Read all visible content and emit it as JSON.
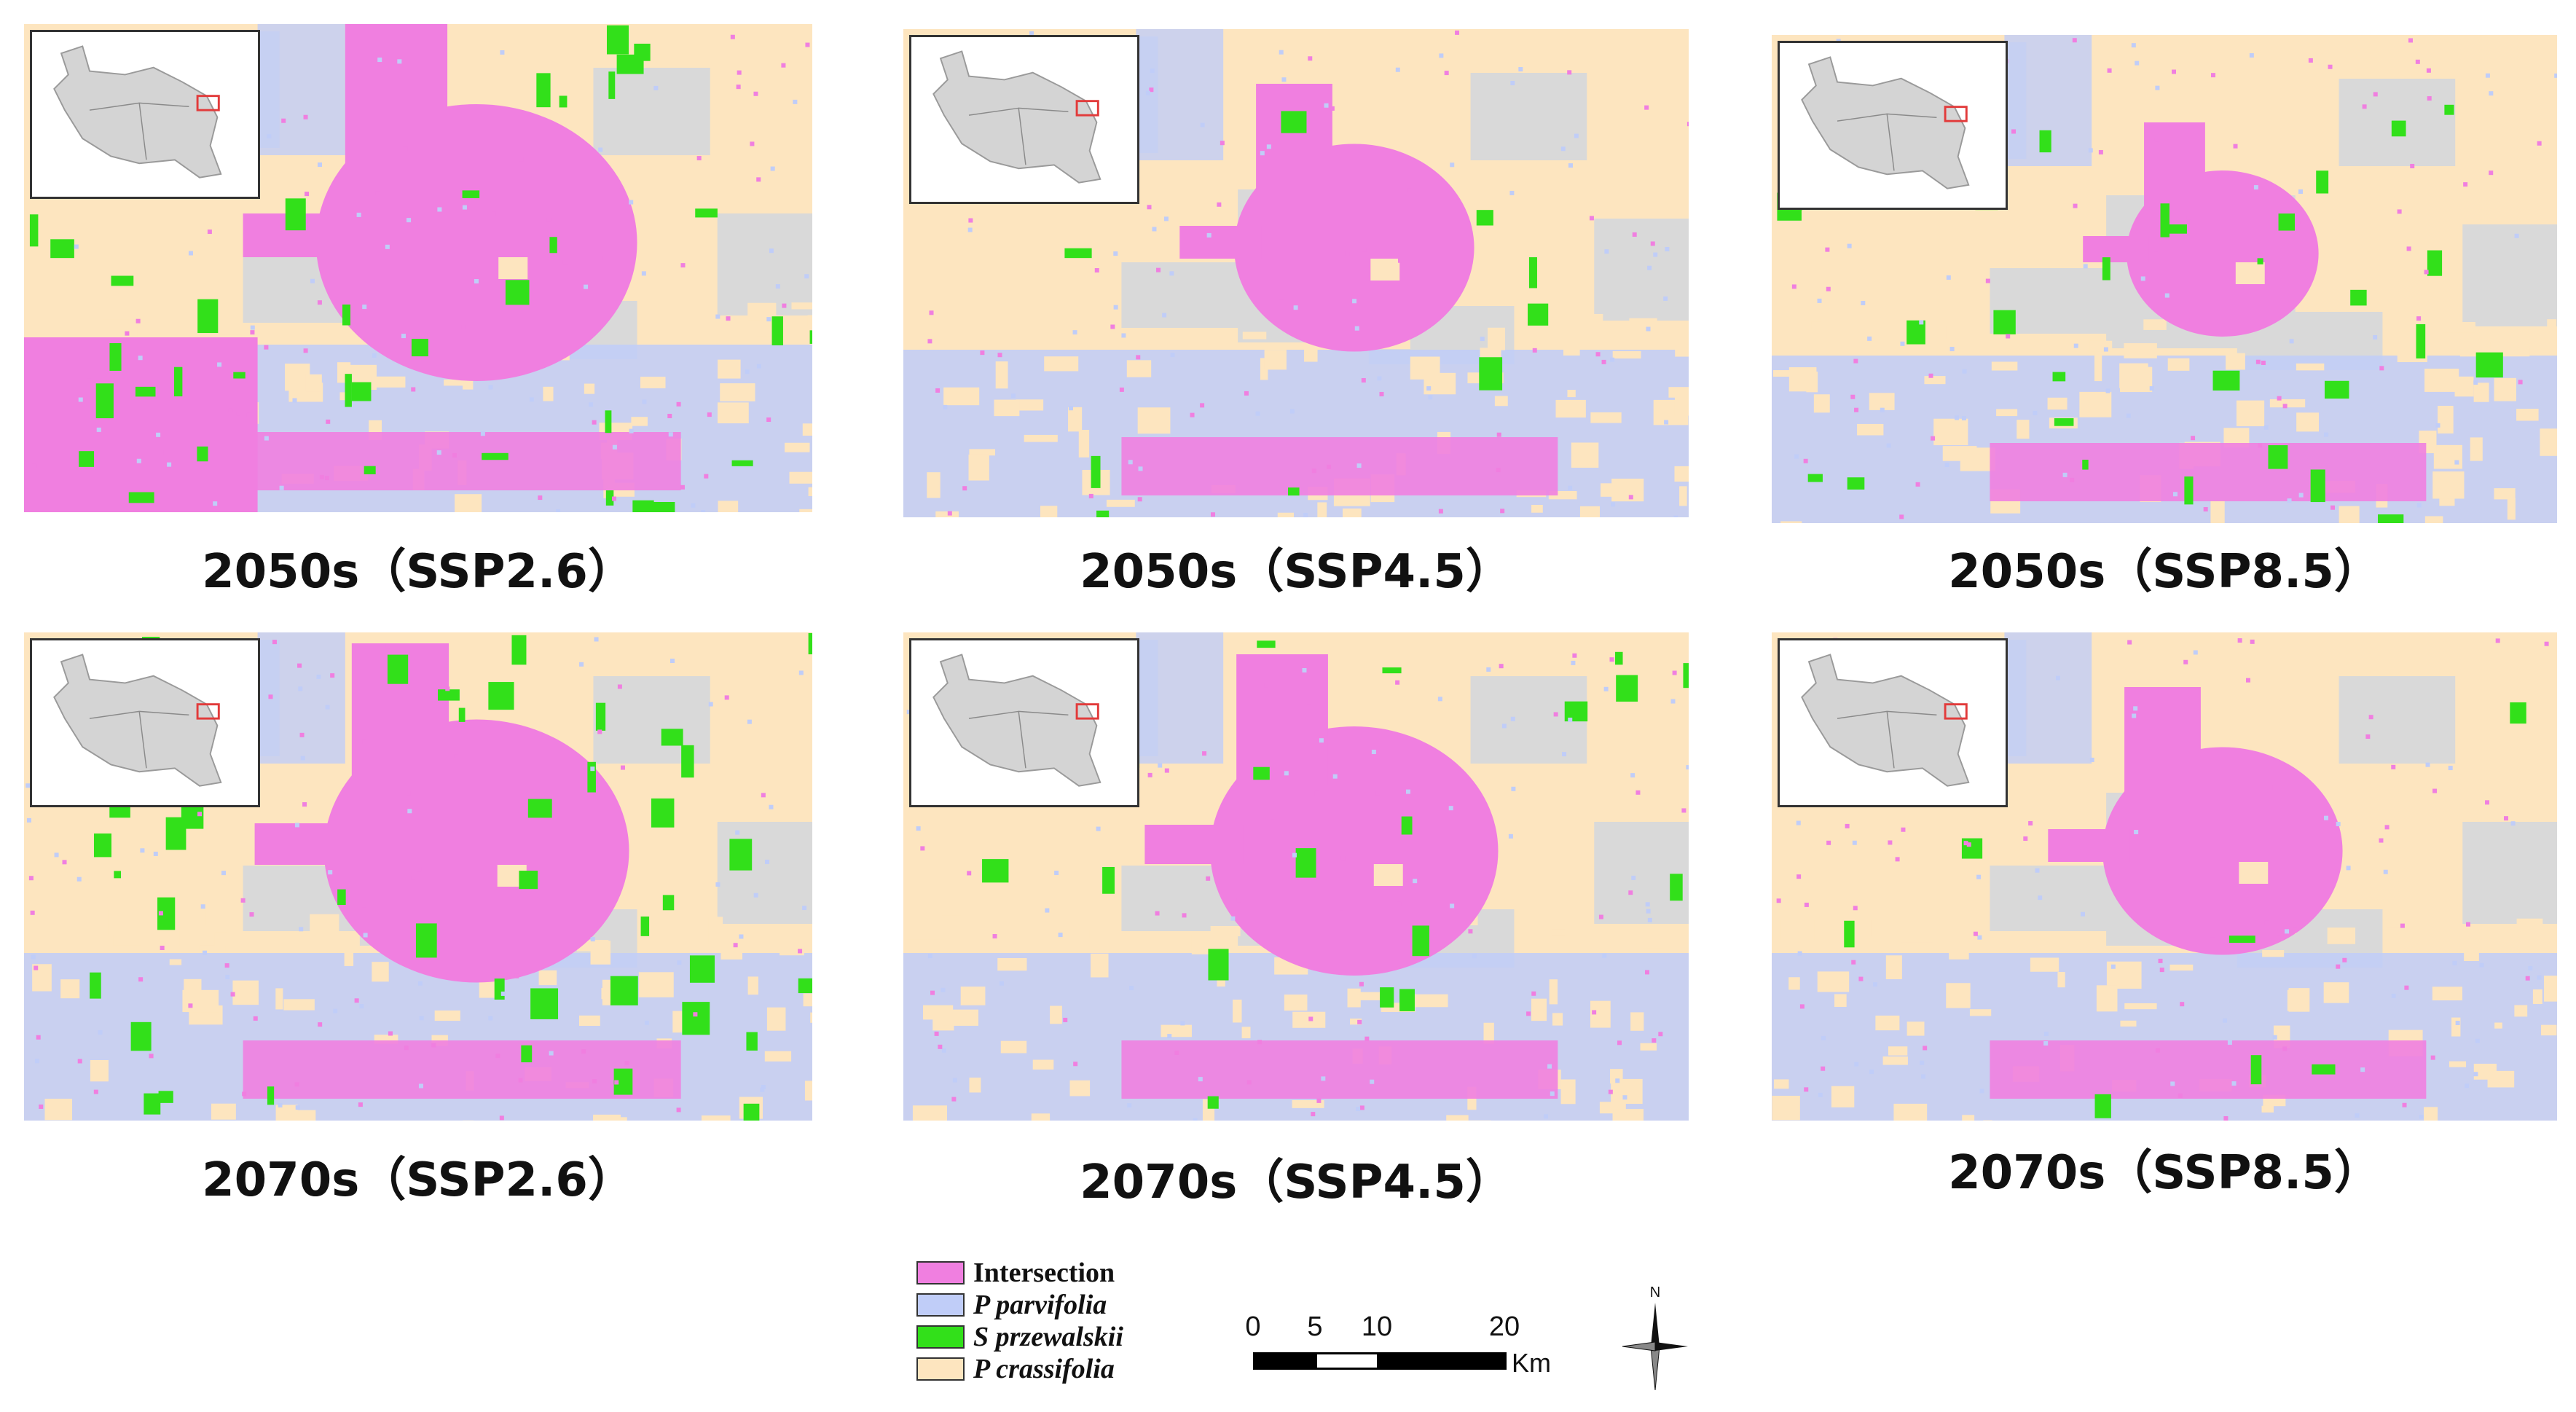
{
  "panels": [
    {
      "caption": "2050s（SSP2.6）"
    },
    {
      "caption": "2050s（SSP4.5）"
    },
    {
      "caption": "2050s（SSP8.5）"
    },
    {
      "caption": "2070s（SSP2.6）"
    },
    {
      "caption": "2070s（SSP4.5）"
    },
    {
      "caption": "2070s（SSP8.5）"
    }
  ],
  "legend": {
    "items": [
      {
        "label": "Intersection",
        "color": "#f07fe0",
        "italic": false
      },
      {
        "label": "P parvifolia",
        "color": "#c0cdf8",
        "italic": true
      },
      {
        "label": "S przewalskii",
        "color": "#32e01a",
        "italic": true
      },
      {
        "label": "P crassifolia",
        "color": "#fde5bf",
        "italic": true
      }
    ]
  },
  "scalebar": {
    "ticks": [
      "0",
      "5",
      "10",
      "20"
    ],
    "unit": "Km"
  },
  "north_arrow": {
    "label": "N"
  },
  "colors": {
    "intersection": "#f07fe0",
    "parvifolia": "#c0cdf8",
    "przewalskii": "#32e01a",
    "crassifolia": "#fde5bf",
    "unsuitable": "#d9d9d9",
    "inset_region": "#d4d4d4",
    "inset_box": "#e23b3b"
  }
}
